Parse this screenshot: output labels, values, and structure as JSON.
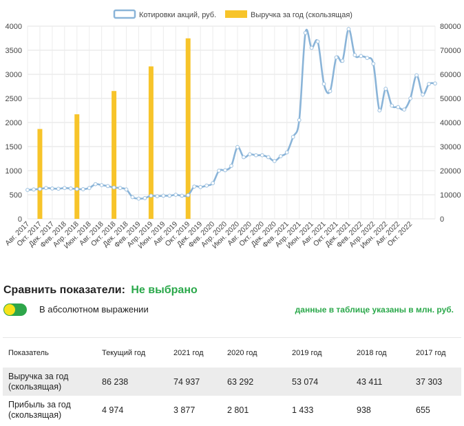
{
  "chart_data": {
    "type": "bar+line",
    "legend": [
      {
        "label": "Котировки акций, руб.",
        "color": "#8ab4d8",
        "kind": "line"
      },
      {
        "label": "Выручка за год (скользящая)",
        "color": "#f7c42a",
        "kind": "bar"
      }
    ],
    "y_left": {
      "min": 0,
      "max": 4000,
      "ticks": [
        "0",
        "500",
        "1000",
        "1500",
        "2000",
        "2500",
        "3000",
        "3500",
        "4000"
      ]
    },
    "y_right": {
      "min": 0,
      "max": 80000,
      "ticks": [
        "0",
        "10000",
        "20000",
        "30000",
        "40000",
        "50000",
        "60000",
        "70000",
        "80000"
      ]
    },
    "x_labels": [
      "Авг. 2017",
      "Окт. 2017",
      "Дек. 2017",
      "Фев. 2018",
      "Апр. 2018",
      "Июн. 2018",
      "Авг. 2018",
      "Окт. 2018",
      "Дек. 2018",
      "Фев. 2019",
      "Апр. 2019",
      "Июн. 2019",
      "Авг. 2019",
      "Окт. 2019",
      "Дек. 2019",
      "Фев. 2020",
      "Апр. 2020",
      "Июн. 2020",
      "Авг. 2020",
      "Окт. 2020",
      "Дек. 2020",
      "Фев. 2021",
      "Апр. 2021",
      "Июн. 2021",
      "Авг. 2021",
      "Окт. 2021",
      "Дек. 2021",
      "Фев. 2022",
      "Апр. 2022",
      "Июн. 2022",
      "Авг. 2022",
      "Окт. 2022"
    ],
    "price_series": [
      600,
      610,
      620,
      640,
      630,
      625,
      640,
      630,
      620,
      615,
      640,
      720,
      700,
      680,
      650,
      640,
      610,
      450,
      420,
      430,
      480,
      470,
      480,
      480,
      500,
      480,
      490,
      670,
      660,
      690,
      740,
      1000,
      1010,
      1100,
      1490,
      1280,
      1340,
      1320,
      1320,
      1280,
      1200,
      1300,
      1380,
      1700,
      2050,
      3860,
      3550,
      3680,
      2800,
      2650,
      3350,
      3280,
      3940,
      3400,
      3380,
      3340,
      3220,
      2250,
      2700,
      2350,
      2320,
      2270,
      2500,
      2980,
      2580,
      2800,
      2810
    ],
    "revenue_bars": [
      {
        "index": 2,
        "value": 37303
      },
      {
        "index": 8,
        "value": 43411
      },
      {
        "index": 14,
        "value": 53074
      },
      {
        "index": 20,
        "value": 63292
      },
      {
        "index": 26,
        "value": 74937
      }
    ]
  },
  "compare": {
    "label": "Сравнить показатели:",
    "value": "Не выбрано"
  },
  "toggle": {
    "label": "В абсолютном выражении",
    "note": "данные в таблице указаны в млн. руб."
  },
  "colors": {
    "accent_green": "#2aa84a",
    "line": "#8ab4d8",
    "bar": "#f7c42a"
  },
  "table": {
    "headers": [
      "Показатель",
      "Текущий год",
      "2021 год",
      "2020 год",
      "2019 год",
      "2018 год",
      "2017 год"
    ],
    "rows": [
      {
        "name": "Выручка за год (скользящая)",
        "values": [
          "86 238",
          "74 937",
          "63 292",
          "53 074",
          "43 411",
          "37 303"
        ]
      },
      {
        "name": "Прибыль за год (скользящая)",
        "values": [
          "4 974",
          "3 877",
          "2 801",
          "1 433",
          "938",
          "655"
        ]
      }
    ]
  }
}
